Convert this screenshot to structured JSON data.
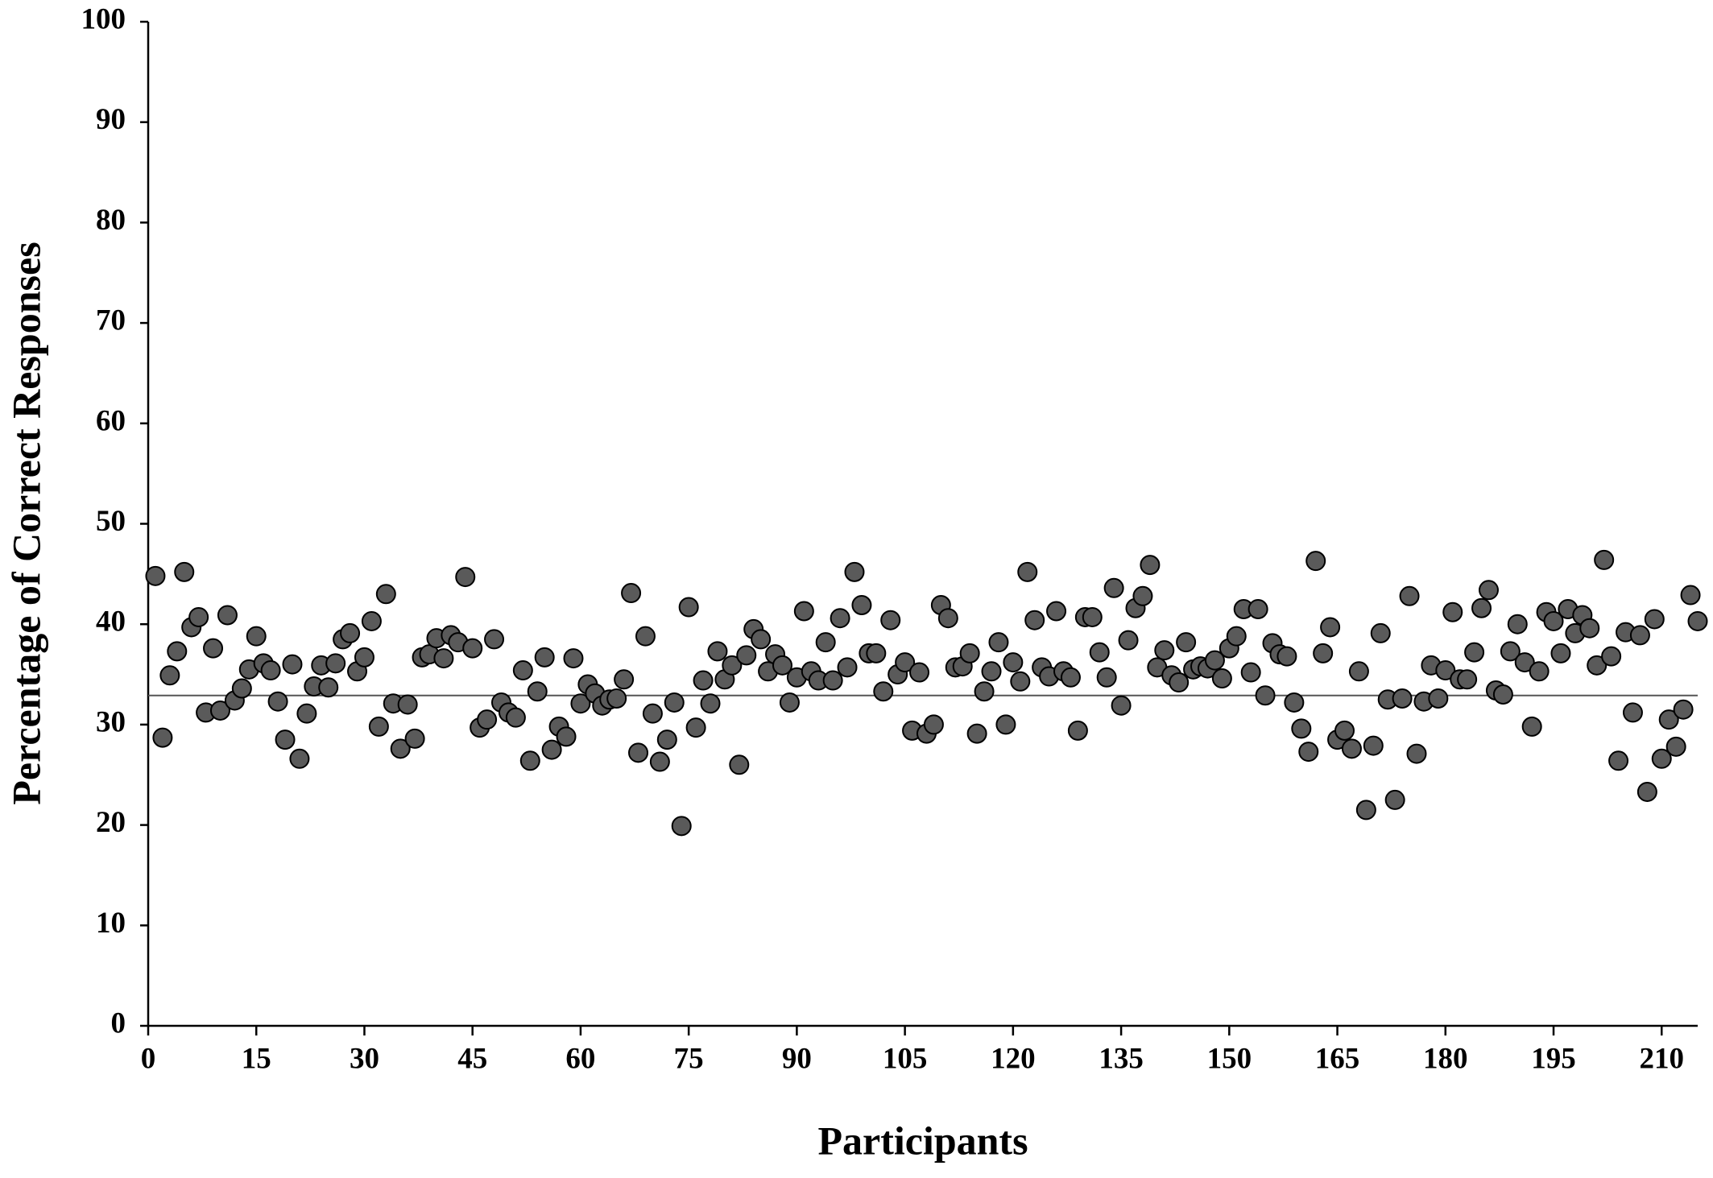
{
  "chart_data": {
    "type": "scatter",
    "xlabel": "Participants",
    "ylabel": "Percentage of Correct Responses",
    "x": [
      1,
      2,
      3,
      4,
      5,
      6,
      7,
      8,
      9,
      10,
      11,
      12,
      13,
      14,
      15,
      16,
      17,
      18,
      19,
      20,
      21,
      22,
      23,
      24,
      25,
      26,
      27,
      28,
      29,
      30,
      31,
      32,
      33,
      34,
      35,
      36,
      37,
      38,
      39,
      40,
      41,
      42,
      43,
      44,
      45,
      46,
      47,
      48,
      49,
      50,
      51,
      52,
      53,
      54,
      55,
      56,
      57,
      58,
      59,
      60,
      61,
      62,
      63,
      64,
      65,
      66,
      67,
      68,
      69,
      70,
      71,
      72,
      73,
      74,
      75,
      76,
      77,
      78,
      79,
      80,
      81,
      82,
      83,
      84,
      85,
      86,
      87,
      88,
      89,
      90,
      91,
      92,
      93,
      94,
      95,
      96,
      97,
      98,
      99,
      100,
      101,
      102,
      103,
      104,
      105,
      106,
      107,
      108,
      109,
      110,
      111,
      112,
      113,
      114,
      115,
      116,
      117,
      118,
      119,
      120,
      121,
      122,
      123,
      124,
      125,
      126,
      127,
      128,
      129,
      130,
      131,
      132,
      133,
      134,
      135,
      136,
      137,
      138,
      139,
      140,
      141,
      142,
      143,
      144,
      145,
      146,
      147,
      148,
      149,
      150,
      151,
      152,
      153,
      154,
      155,
      156,
      157,
      158,
      159,
      160,
      161,
      162,
      163,
      164,
      165,
      166,
      167,
      168,
      169,
      170,
      171,
      172,
      173,
      174,
      175,
      176,
      177,
      178,
      179,
      180,
      181,
      182,
      183,
      184,
      185,
      186,
      187,
      188,
      189,
      190,
      191,
      192,
      193,
      194,
      195,
      196,
      197,
      198,
      199,
      200,
      201,
      202,
      203,
      204,
      205,
      206,
      207,
      208,
      209,
      210,
      211,
      212,
      213,
      214,
      215
    ],
    "values": [
      44.8,
      28.7,
      34.9,
      37.3,
      45.2,
      39.7,
      40.7,
      31.2,
      37.6,
      31.4,
      40.9,
      32.4,
      33.6,
      35.5,
      38.8,
      36.1,
      35.4,
      32.3,
      28.5,
      36.0,
      26.6,
      31.1,
      33.8,
      35.9,
      33.7,
      36.1,
      38.5,
      39.1,
      35.3,
      36.7,
      40.3,
      29.8,
      43.0,
      32.1,
      27.6,
      32.0,
      28.6,
      36.7,
      37.0,
      38.6,
      36.6,
      38.9,
      38.2,
      44.7,
      37.6,
      29.7,
      30.5,
      38.5,
      32.2,
      31.2,
      30.7,
      35.4,
      26.4,
      33.3,
      36.7,
      27.5,
      29.8,
      28.8,
      36.6,
      32.1,
      34.0,
      33.1,
      31.9,
      32.5,
      32.6,
      34.5,
      43.1,
      27.2,
      38.8,
      31.1,
      26.3,
      28.5,
      32.2,
      19.9,
      41.7,
      29.7,
      34.4,
      32.1,
      37.3,
      34.5,
      35.9,
      26.0,
      36.9,
      39.5,
      38.5,
      35.3,
      37.0,
      35.9,
      32.2,
      34.7,
      41.3,
      35.3,
      34.4,
      38.2,
      34.4,
      40.6,
      35.7,
      45.2,
      41.9,
      37.1,
      37.1,
      33.3,
      40.4,
      35.0,
      36.2,
      29.4,
      35.2,
      29.1,
      30.0,
      41.9,
      40.6,
      35.7,
      35.8,
      37.1,
      29.1,
      33.3,
      35.3,
      38.2,
      30.0,
      36.2,
      34.3,
      45.2,
      40.4,
      35.7,
      34.8,
      41.3,
      35.3,
      34.7,
      29.4,
      40.7,
      40.7,
      37.2,
      34.7,
      43.6,
      31.9,
      38.4,
      41.6,
      42.8,
      45.9,
      35.7,
      37.4,
      34.9,
      34.2,
      38.2,
      35.5,
      35.8,
      35.6,
      36.4,
      34.6,
      37.6,
      38.8,
      41.5,
      35.2,
      41.5,
      32.9,
      38.1,
      37.0,
      36.8,
      32.2,
      29.6,
      27.3,
      46.3,
      37.1,
      39.7,
      28.5,
      29.4,
      27.6,
      35.3,
      21.5,
      27.9,
      39.1,
      32.5,
      22.5,
      32.6,
      42.8,
      27.1,
      32.3,
      35.9,
      32.6,
      35.4,
      41.2,
      34.5,
      34.5,
      37.2,
      41.6,
      43.4,
      33.4,
      33.0,
      37.3,
      40.0,
      36.2,
      29.8,
      35.3,
      41.2,
      40.3,
      37.1,
      41.5,
      39.1,
      40.9,
      39.6,
      35.9,
      46.4,
      36.8,
      26.4,
      39.2,
      31.2,
      38.9,
      23.3,
      40.5,
      26.6,
      30.5,
      27.8,
      31.5,
      42.9,
      40.3
    ],
    "color": "#5a5a5a",
    "reference_line": 32.9,
    "xlim": [
      0,
      215
    ],
    "xticks": [
      0,
      15,
      30,
      45,
      60,
      75,
      90,
      105,
      120,
      135,
      150,
      165,
      180,
      195,
      210
    ],
    "ylim": [
      0,
      100
    ],
    "yticks": [
      0,
      10,
      20,
      30,
      40,
      50,
      60,
      70,
      80,
      90,
      100
    ],
    "grid": false
  }
}
